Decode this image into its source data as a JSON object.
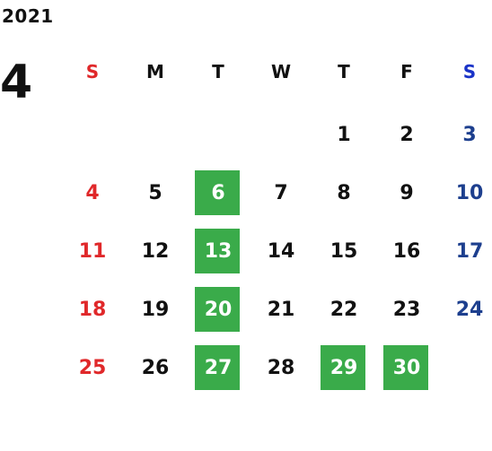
{
  "calendar": {
    "year": "2021",
    "month": "4",
    "weekdays": [
      "S",
      "M",
      "T",
      "W",
      "T",
      "F",
      "S"
    ],
    "colors": {
      "sunday": "#e0282a",
      "saturday_weekday_label": "#1a33c8",
      "saturday_day": "#1d3f8e",
      "highlight": "#3aab4a",
      "text": "#111111"
    },
    "weeks": [
      [
        "",
        "",
        "",
        "",
        "1",
        "2",
        "3"
      ],
      [
        "4",
        "5",
        "6",
        "7",
        "8",
        "9",
        "10"
      ],
      [
        "11",
        "12",
        "13",
        "14",
        "15",
        "16",
        "17"
      ],
      [
        "18",
        "19",
        "20",
        "21",
        "22",
        "23",
        "24"
      ],
      [
        "25",
        "26",
        "27",
        "28",
        "29",
        "30",
        ""
      ]
    ],
    "highlighted_days": [
      "6",
      "13",
      "20",
      "27",
      "29",
      "30"
    ]
  }
}
